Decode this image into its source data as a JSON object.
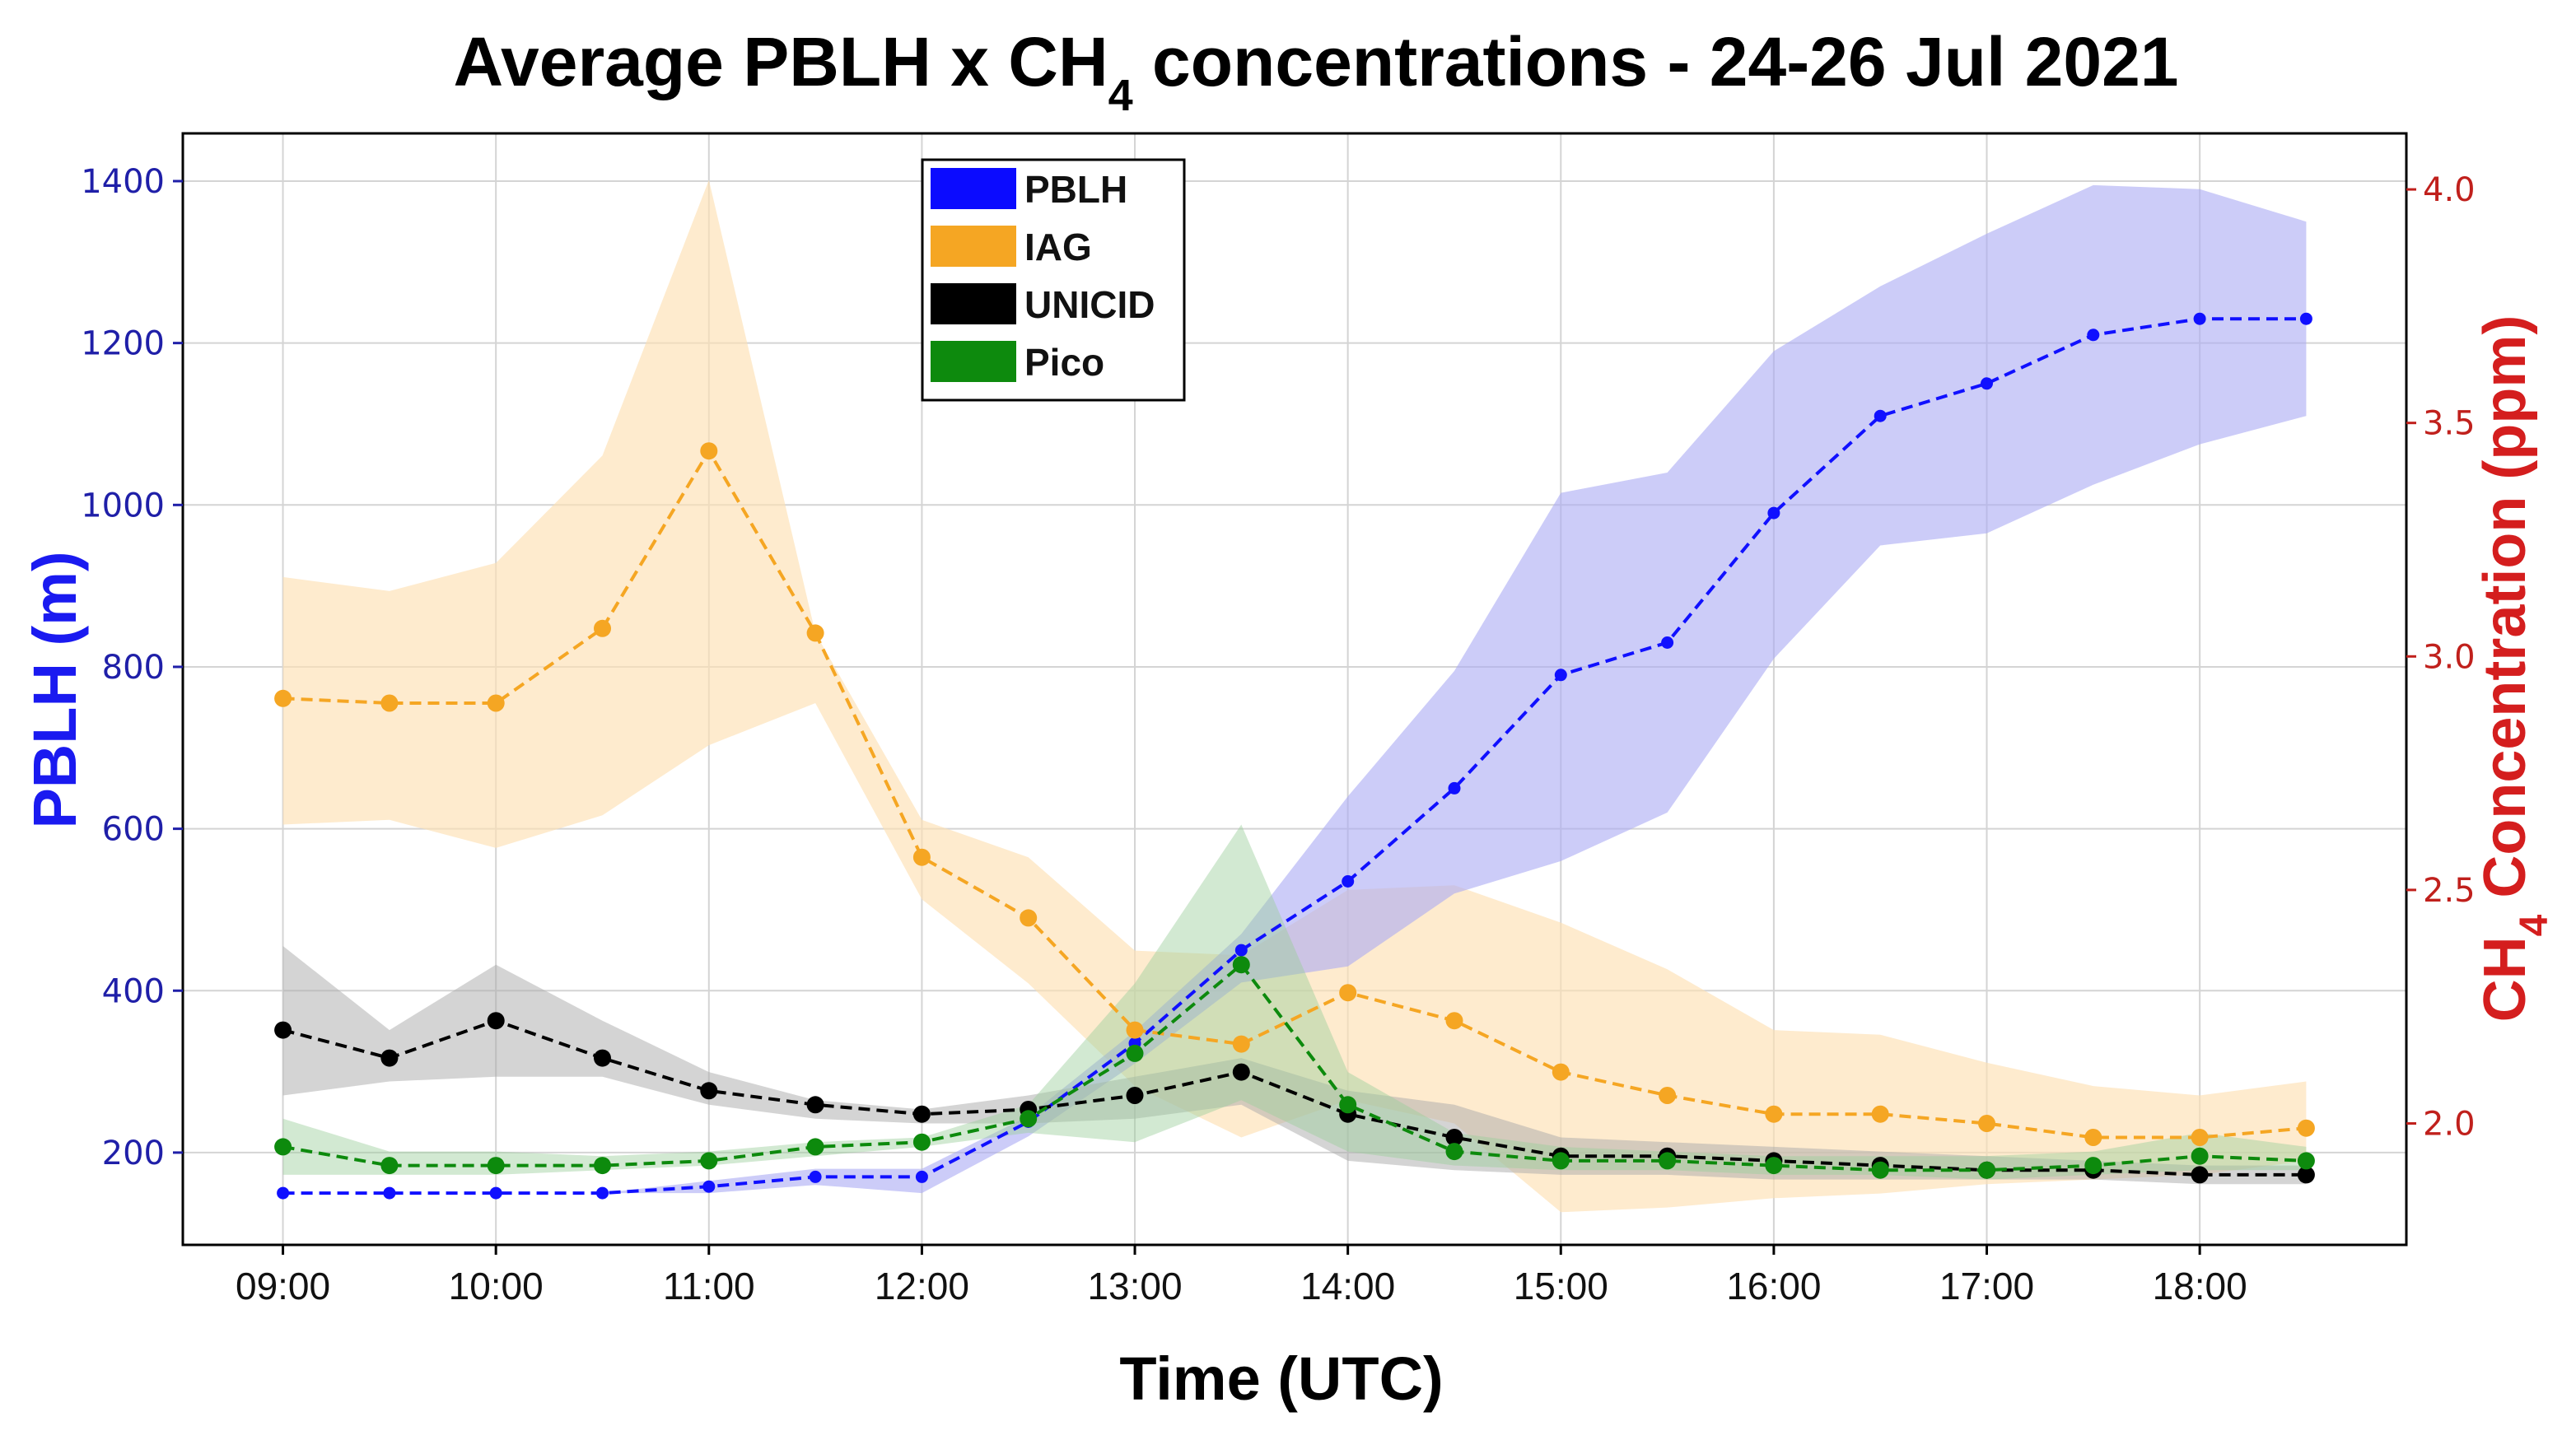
{
  "chart_data": {
    "type": "line",
    "title": "Average PBLH x CH",
    "title_subscript": "4",
    "title_suffix": "  concentrations -  24-26 Jul 2021",
    "xlabel": "Time (UTC)",
    "ylabel_left": "PBLH (m)",
    "ylabel_right_prefix": "CH",
    "ylabel_right_subscript": "4",
    "ylabel_right_suffix": " Concentration (ppm)",
    "x_ticks": [
      "09:00",
      "10:00",
      "11:00",
      "12:00",
      "13:00",
      "14:00",
      "15:00",
      "16:00",
      "17:00",
      "18:00"
    ],
    "x_tick_hours": [
      9,
      10,
      11,
      12,
      13,
      14,
      15,
      16,
      17,
      18
    ],
    "xlim": [
      8.53,
      18.97
    ],
    "y_left_ticks": [
      200,
      400,
      600,
      800,
      1000,
      1200,
      1400
    ],
    "y_left_ticks_text": [
      "200",
      "400",
      "600",
      "800",
      "1000",
      "1200",
      "1400"
    ],
    "ylim_left": [
      86,
      1459
    ],
    "y_right_ticks": [
      2.0,
      2.5,
      3.0,
      3.5,
      4.0
    ],
    "y_right_ticks_text": [
      "2.0",
      "2.5",
      "3.0",
      "3.5",
      "4.0"
    ],
    "ylim_right": [
      1.74,
      4.12
    ],
    "grid": true,
    "legend_position": "top-center",
    "x": [
      9,
      9.5,
      10,
      10.5,
      11,
      11.5,
      12,
      12.5,
      13,
      13.5,
      14,
      14.5,
      15,
      15.5,
      16,
      16.5,
      17,
      17.5,
      18,
      18.5
    ],
    "series": [
      {
        "name": "PBLH",
        "axis": "left",
        "color": "#1010ff",
        "marker_size": 5,
        "values": [
          150,
          150,
          150,
          150,
          158,
          170,
          170,
          238,
          335,
          450,
          535,
          650,
          790,
          830,
          990,
          1110,
          1150,
          1210,
          1230,
          1230
        ],
        "band_upper": [
          150,
          150,
          150,
          150,
          165,
          180,
          180,
          245,
          350,
          470,
          640,
          795,
          1015,
          1040,
          1190,
          1270,
          1335,
          1395,
          1390,
          1350
        ],
        "band_lower": [
          150,
          150,
          150,
          150,
          150,
          160,
          150,
          220,
          310,
          410,
          430,
          520,
          560,
          620,
          810,
          950,
          965,
          1025,
          1075,
          1110
        ]
      },
      {
        "name": "IAG",
        "axis": "right",
        "color": "#f5a623",
        "marker_size": 7,
        "values": [
          2.91,
          2.9,
          2.9,
          3.06,
          3.44,
          3.05,
          2.57,
          2.44,
          2.2,
          2.17,
          2.28,
          2.22,
          2.11,
          2.06,
          2.02,
          2.02,
          2.0,
          1.97,
          1.97,
          1.99
        ],
        "band_upper": [
          3.17,
          3.14,
          3.2,
          3.43,
          4.02,
          3.05,
          2.65,
          2.57,
          2.37,
          2.36,
          2.5,
          2.51,
          2.43,
          2.33,
          2.2,
          2.19,
          2.13,
          2.08,
          2.06,
          2.09
        ],
        "band_lower": [
          2.64,
          2.65,
          2.59,
          2.66,
          2.81,
          2.9,
          2.48,
          2.3,
          2.08,
          1.97,
          2.05,
          2.0,
          1.81,
          1.82,
          1.84,
          1.85,
          1.87,
          1.88,
          1.89,
          1.92
        ]
      },
      {
        "name": "UNICID",
        "axis": "right",
        "color": "#000000",
        "marker_size": 7,
        "values": [
          2.2,
          2.14,
          2.22,
          2.14,
          2.07,
          2.04,
          2.02,
          2.03,
          2.06,
          2.11,
          2.02,
          1.97,
          1.93,
          1.93,
          1.92,
          1.91,
          1.9,
          1.9,
          1.89,
          1.89
        ],
        "band_upper": [
          2.38,
          2.2,
          2.34,
          2.22,
          2.11,
          2.05,
          2.03,
          2.06,
          2.1,
          2.14,
          2.07,
          2.04,
          1.97,
          1.96,
          1.95,
          1.94,
          1.93,
          1.92,
          1.91,
          1.91
        ],
        "band_lower": [
          2.06,
          2.09,
          2.1,
          2.1,
          2.04,
          2.01,
          2.0,
          2.0,
          2.01,
          2.04,
          1.92,
          1.9,
          1.89,
          1.89,
          1.88,
          1.88,
          1.88,
          1.88,
          1.87,
          1.87
        ]
      },
      {
        "name": "Pico",
        "axis": "right",
        "color": "#0d8a0d",
        "marker_size": 7,
        "values": [
          1.95,
          1.91,
          1.91,
          1.91,
          1.92,
          1.95,
          1.96,
          2.01,
          2.15,
          2.34,
          2.04,
          1.94,
          1.92,
          1.92,
          1.91,
          1.9,
          1.9,
          1.91,
          1.93,
          1.92
        ],
        "band_upper": [
          2.01,
          1.94,
          1.94,
          1.93,
          1.94,
          1.96,
          1.97,
          2.04,
          2.3,
          2.64,
          2.11,
          1.98,
          1.95,
          1.94,
          1.93,
          1.93,
          1.93,
          1.94,
          1.98,
          1.95
        ],
        "band_lower": [
          1.89,
          1.89,
          1.89,
          1.9,
          1.91,
          1.93,
          1.95,
          1.98,
          1.96,
          2.05,
          1.94,
          1.91,
          1.9,
          1.9,
          1.89,
          1.89,
          1.88,
          1.89,
          1.9,
          1.9
        ]
      }
    ]
  }
}
